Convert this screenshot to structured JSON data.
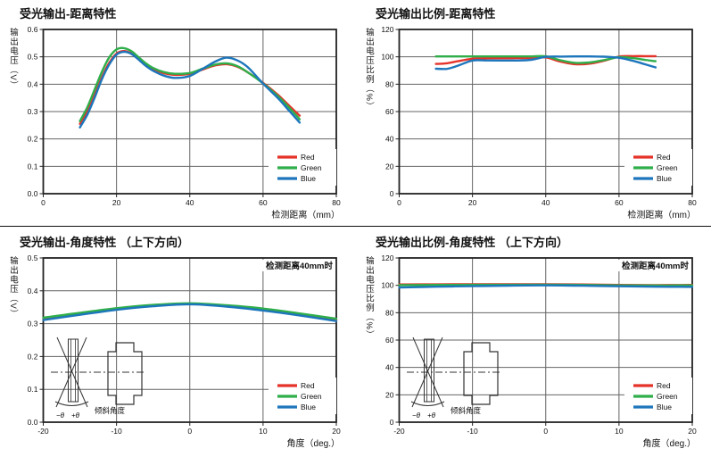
{
  "colors": {
    "red": "#e5332a",
    "green": "#2fae4a",
    "blue": "#1d76bc",
    "grid": "#646464",
    "axis": "#222222",
    "text": "#111111",
    "inset": "#333333"
  },
  "legend_items": [
    {
      "label": "Red",
      "color": "red"
    },
    {
      "label": "Green",
      "color": "green"
    },
    {
      "label": "Blue",
      "color": "blue"
    }
  ],
  "inset_labels": {
    "minus_theta": "−θ",
    "plus_theta": "+θ",
    "caption": "倾斜角度"
  },
  "chart_data": [
    {
      "type": "line",
      "title": "受光输出-距离特性",
      "ylabel": "输出电压（V）",
      "xlabel": "检测距离（mm）",
      "xlim": [
        0,
        80
      ],
      "ylim": [
        0,
        0.6
      ],
      "grid": true,
      "legend_position": "inside-lower-right",
      "xticks": [
        {
          "v": 0,
          "label": "0"
        },
        {
          "v": 20,
          "label": "20"
        },
        {
          "v": 40,
          "label": "40"
        },
        {
          "v": 60,
          "label": "60"
        },
        {
          "v": 80,
          "label": "80"
        }
      ],
      "yticks": [
        {
          "v": 0,
          "label": "0.0"
        },
        {
          "v": 0.1,
          "label": "0.1"
        },
        {
          "v": 0.2,
          "label": "0.2"
        },
        {
          "v": 0.3,
          "label": "0.3"
        },
        {
          "v": 0.4,
          "label": "0.4"
        },
        {
          "v": 0.5,
          "label": "0.5"
        },
        {
          "v": 0.6,
          "label": "0.6"
        }
      ],
      "annotation": "",
      "inset": false,
      "series": [
        {
          "name": "Red",
          "color": "red",
          "x": [
            10,
            12,
            14,
            16,
            18,
            20,
            22,
            24,
            26,
            28,
            30,
            33,
            36,
            40,
            44,
            47,
            50,
            53,
            56,
            60,
            64,
            67,
            70
          ],
          "y": [
            0.255,
            0.3,
            0.36,
            0.425,
            0.478,
            0.512,
            0.521,
            0.513,
            0.494,
            0.473,
            0.456,
            0.44,
            0.434,
            0.438,
            0.456,
            0.469,
            0.473,
            0.464,
            0.442,
            0.405,
            0.362,
            0.323,
            0.285
          ]
        },
        {
          "name": "Green",
          "color": "green",
          "x": [
            10,
            12,
            14,
            16,
            18,
            20,
            22,
            24,
            26,
            28,
            30,
            33,
            36,
            40,
            44,
            47,
            50,
            53,
            56,
            60,
            64,
            67,
            70
          ],
          "y": [
            0.265,
            0.315,
            0.38,
            0.445,
            0.498,
            0.527,
            0.532,
            0.521,
            0.499,
            0.476,
            0.459,
            0.444,
            0.438,
            0.441,
            0.459,
            0.472,
            0.476,
            0.466,
            0.442,
            0.403,
            0.357,
            0.316,
            0.272
          ]
        },
        {
          "name": "Blue",
          "color": "blue",
          "x": [
            10,
            12,
            14,
            16,
            18,
            20,
            22,
            24,
            26,
            28,
            30,
            33,
            36,
            40,
            44,
            47,
            50,
            53,
            56,
            60,
            64,
            67,
            70
          ],
          "y": [
            0.242,
            0.288,
            0.35,
            0.418,
            0.472,
            0.508,
            0.518,
            0.511,
            0.49,
            0.467,
            0.449,
            0.431,
            0.423,
            0.43,
            0.46,
            0.483,
            0.497,
            0.487,
            0.46,
            0.402,
            0.35,
            0.305,
            0.26
          ]
        }
      ]
    },
    {
      "type": "line",
      "title": "受光输出比例-距离特性",
      "ylabel": "输出电压比例（%）",
      "xlabel": "检测距离（mm）",
      "xlim": [
        0,
        80
      ],
      "ylim": [
        0,
        120
      ],
      "grid": true,
      "legend_position": "inside-lower-right",
      "xticks": [
        {
          "v": 0,
          "label": "0"
        },
        {
          "v": 20,
          "label": "20"
        },
        {
          "v": 40,
          "label": "40"
        },
        {
          "v": 60,
          "label": "60"
        },
        {
          "v": 80,
          "label": "80"
        }
      ],
      "yticks": [
        {
          "v": 0,
          "label": "0"
        },
        {
          "v": 20,
          "label": "20"
        },
        {
          "v": 40,
          "label": "40"
        },
        {
          "v": 60,
          "label": "60"
        },
        {
          "v": 80,
          "label": "80"
        },
        {
          "v": 100,
          "label": "100"
        },
        {
          "v": 120,
          "label": "120"
        }
      ],
      "annotation": "",
      "inset": false,
      "series": [
        {
          "name": "Red",
          "color": "red",
          "x": [
            10,
            13,
            16,
            20,
            24,
            28,
            32,
            36,
            40,
            44,
            48,
            52,
            56,
            60,
            64,
            67,
            70
          ],
          "y": [
            94.8,
            95.3,
            96.8,
            98.6,
            99.0,
            99.0,
            99.1,
            99.2,
            99.6,
            96.5,
            94.6,
            95.0,
            97.2,
            100.2,
            100.5,
            100.5,
            100.5
          ]
        },
        {
          "name": "Green",
          "color": "green",
          "x": [
            10,
            13,
            16,
            20,
            24,
            28,
            32,
            36,
            40,
            44,
            48,
            52,
            56,
            60,
            64,
            67,
            70
          ],
          "y": [
            100.3,
            100.3,
            100.3,
            100.3,
            100.3,
            100.3,
            100.3,
            100.3,
            100.4,
            97.5,
            95.6,
            95.9,
            97.6,
            99.8,
            99.0,
            97.8,
            96.8
          ]
        },
        {
          "name": "Blue",
          "color": "blue",
          "x": [
            10,
            13,
            16,
            20,
            24,
            28,
            32,
            36,
            40,
            44,
            48,
            52,
            56,
            60,
            64,
            67,
            70
          ],
          "y": [
            91.3,
            91.2,
            93.5,
            97.3,
            97.4,
            97.3,
            97.3,
            97.8,
            100.0,
            100.2,
            100.3,
            100.3,
            100.1,
            99.3,
            97.0,
            94.6,
            92.3
          ]
        }
      ]
    },
    {
      "type": "line",
      "title": "受光输出-角度特性 （上下方向）",
      "ylabel": "输出电压（V）",
      "xlabel": "角度（deg.）",
      "xlim": [
        -20,
        20
      ],
      "ylim": [
        0,
        0.5
      ],
      "grid": true,
      "legend_position": "inside-lower-right",
      "xticks": [
        {
          "v": -20,
          "label": "-20"
        },
        {
          "v": -10,
          "label": "-10"
        },
        {
          "v": 0,
          "label": "0"
        },
        {
          "v": 10,
          "label": "10"
        },
        {
          "v": 20,
          "label": "20"
        }
      ],
      "yticks": [
        {
          "v": 0,
          "label": "0.0"
        },
        {
          "v": 0.1,
          "label": "0.1"
        },
        {
          "v": 0.2,
          "label": "0.2"
        },
        {
          "v": 0.3,
          "label": "0.3"
        },
        {
          "v": 0.4,
          "label": "0.4"
        },
        {
          "v": 0.5,
          "label": "0.5"
        }
      ],
      "annotation": "检测距离40mm时",
      "inset": true,
      "series": [
        {
          "name": "Red",
          "color": "red",
          "x": [
            -20,
            -15,
            -10,
            -5,
            0,
            5,
            10,
            15,
            20
          ],
          "y": [
            0.315,
            0.33,
            0.344,
            0.355,
            0.36,
            0.353,
            0.342,
            0.327,
            0.311
          ]
        },
        {
          "name": "Green",
          "color": "green",
          "x": [
            -20,
            -15,
            -10,
            -5,
            0,
            5,
            10,
            15,
            20
          ],
          "y": [
            0.318,
            0.333,
            0.347,
            0.357,
            0.362,
            0.356,
            0.346,
            0.331,
            0.315
          ]
        },
        {
          "name": "Blue",
          "color": "blue",
          "x": [
            -20,
            -15,
            -10,
            -5,
            0,
            5,
            10,
            15,
            20
          ],
          "y": [
            0.311,
            0.327,
            0.342,
            0.353,
            0.359,
            0.352,
            0.34,
            0.325,
            0.308
          ]
        }
      ]
    },
    {
      "type": "line",
      "title": "受光输出比例-角度特性 （上下方向）",
      "ylabel": "输出电压比例（%）",
      "xlabel": "角度（deg.）",
      "xlim": [
        -20,
        20
      ],
      "ylim": [
        0,
        120
      ],
      "grid": true,
      "legend_position": "inside-lower-right",
      "xticks": [
        {
          "v": -20,
          "label": "-20"
        },
        {
          "v": -10,
          "label": "-10"
        },
        {
          "v": 0,
          "label": "0"
        },
        {
          "v": 10,
          "label": "10"
        },
        {
          "v": 20,
          "label": "20"
        }
      ],
      "yticks": [
        {
          "v": 0,
          "label": "0"
        },
        {
          "v": 20,
          "label": "20"
        },
        {
          "v": 40,
          "label": "40"
        },
        {
          "v": 60,
          "label": "60"
        },
        {
          "v": 80,
          "label": "80"
        },
        {
          "v": 100,
          "label": "100"
        },
        {
          "v": 120,
          "label": "120"
        }
      ],
      "annotation": "检测距离40mm时",
      "inset": true,
      "series": [
        {
          "name": "Red",
          "color": "red",
          "x": [
            -20,
            -15,
            -10,
            -5,
            0,
            5,
            10,
            15,
            20
          ],
          "y": [
            100.6,
            100.7,
            100.8,
            100.8,
            100.8,
            100.6,
            100.3,
            100.2,
            100.3
          ]
        },
        {
          "name": "Green",
          "color": "green",
          "x": [
            -20,
            -15,
            -10,
            -5,
            0,
            5,
            10,
            15,
            20
          ],
          "y": [
            100.2,
            100.3,
            100.4,
            100.4,
            100.5,
            100.3,
            100.0,
            99.9,
            100.0
          ]
        },
        {
          "name": "Blue",
          "color": "blue",
          "x": [
            -20,
            -15,
            -10,
            -5,
            0,
            5,
            10,
            15,
            20
          ],
          "y": [
            98.4,
            99.0,
            99.4,
            99.8,
            100.0,
            99.7,
            99.3,
            99.0,
            98.9
          ]
        }
      ]
    }
  ]
}
